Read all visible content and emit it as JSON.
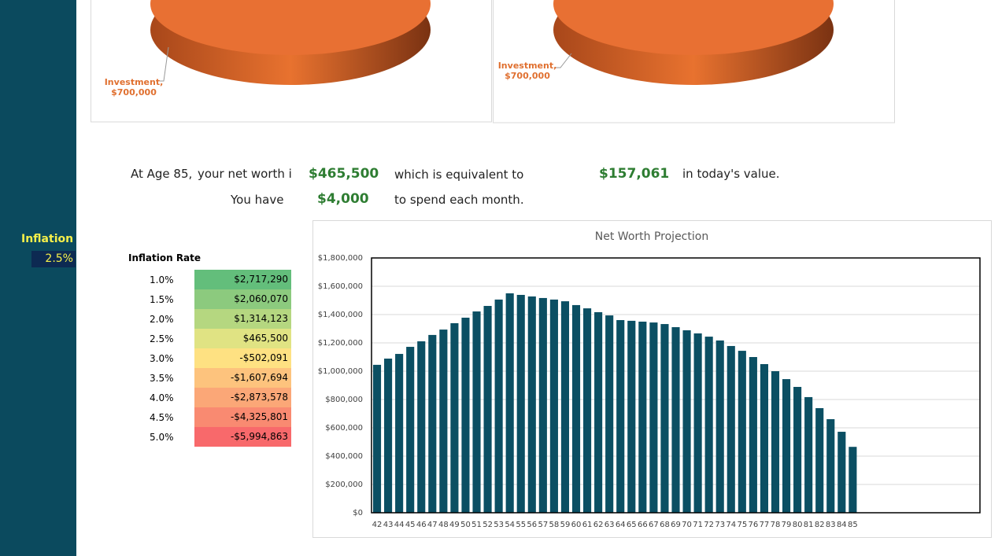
{
  "sidebar": {
    "label": "Inflation",
    "value": "2.5%"
  },
  "pies": [
    {
      "label": "Investment,",
      "amount": "$700,000"
    },
    {
      "label": "Investment,",
      "amount": "$700,000"
    }
  ],
  "summary": {
    "line1": {
      "prefix": "At Age 85,",
      "text": "your net worth i",
      "amount": "$465,500",
      "middle": "which is equivalent to",
      "today": "$157,061",
      "suffix": "in today's value."
    },
    "line2": {
      "prefix": "You have",
      "amount": "$4,000",
      "suffix": "to spend each month."
    }
  },
  "table": {
    "title": "Inflation Rate",
    "rows": [
      {
        "rate": "1.0%",
        "value": "$2,717,290",
        "color": "#63be7b"
      },
      {
        "rate": "1.5%",
        "value": "$2,060,070",
        "color": "#8cca7e"
      },
      {
        "rate": "2.0%",
        "value": "$1,314,123",
        "color": "#b5d780"
      },
      {
        "rate": "2.5%",
        "value": "$465,500",
        "color": "#e0e383"
      },
      {
        "rate": "3.0%",
        "value": "-$502,091",
        "color": "#fee182"
      },
      {
        "rate": "3.5%",
        "value": "-$1,607,694",
        "color": "#fdc37d"
      },
      {
        "rate": "4.0%",
        "value": "-$2,873,578",
        "color": "#fba777"
      },
      {
        "rate": "4.5%",
        "value": "-$4,325,801",
        "color": "#f98a71"
      },
      {
        "rate": "5.0%",
        "value": "-$5,994,863",
        "color": "#f8696b"
      }
    ]
  },
  "chart_data": {
    "type": "bar",
    "title": "Net Worth Projection",
    "color": "#0b4f63",
    "categories": [
      "42",
      "43",
      "44",
      "45",
      "46",
      "47",
      "48",
      "49",
      "50",
      "51",
      "52",
      "53",
      "54",
      "55",
      "56",
      "57",
      "58",
      "59",
      "60",
      "61",
      "62",
      "63",
      "64",
      "65",
      "66",
      "67",
      "68",
      "69",
      "70",
      "71",
      "72",
      "73",
      "74",
      "75",
      "76",
      "77",
      "78",
      "79",
      "80",
      "81",
      "82",
      "83",
      "84",
      "85",
      null,
      null,
      null,
      null,
      null,
      null,
      null,
      null,
      null,
      null,
      null
    ],
    "values": [
      1045000,
      1089000,
      1122000,
      1172000,
      1211000,
      1256000,
      1294000,
      1339000,
      1378000,
      1422000,
      1461000,
      1506000,
      1550000,
      1539000,
      1528000,
      1517000,
      1506000,
      1494000,
      1467000,
      1444000,
      1417000,
      1394000,
      1361000,
      1356000,
      1350000,
      1344000,
      1333000,
      1311000,
      1289000,
      1267000,
      1244000,
      1217000,
      1178000,
      1144000,
      1100000,
      1050000,
      1000000,
      944000,
      889000,
      817000,
      739000,
      661000,
      572000,
      465500,
      null,
      null,
      null,
      null,
      null,
      null,
      null,
      null,
      null,
      null,
      null
    ],
    "ylim": [
      0,
      1800000
    ],
    "yticks": [
      {
        "value": 0,
        "label": "$0"
      },
      {
        "value": 200000,
        "label": "$200,000"
      },
      {
        "value": 400000,
        "label": "$400,000"
      },
      {
        "value": 600000,
        "label": "$600,000"
      },
      {
        "value": 800000,
        "label": "$800,000"
      },
      {
        "value": 1000000,
        "label": "$1,000,000"
      },
      {
        "value": 1200000,
        "label": "$1,200,000"
      },
      {
        "value": 1400000,
        "label": "$1,400,000"
      },
      {
        "value": 1600000,
        "label": "$1,600,000"
      },
      {
        "value": 1800000,
        "label": "$1,800,000"
      }
    ],
    "grid": true
  }
}
